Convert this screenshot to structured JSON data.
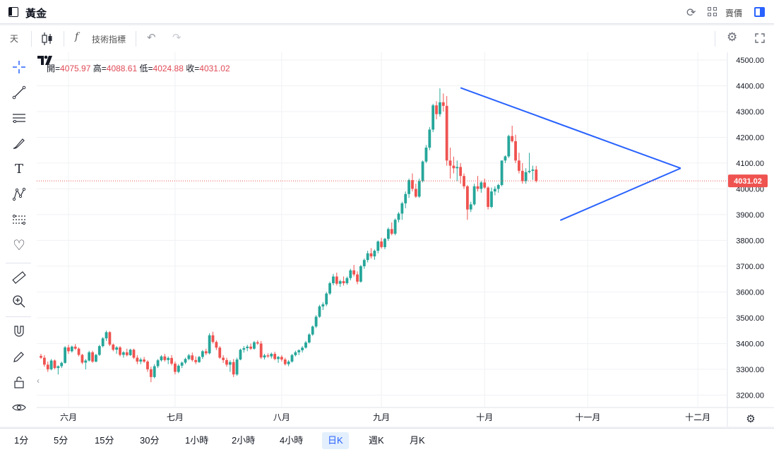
{
  "header": {
    "title": "黃金",
    "quote_label": "賣價"
  },
  "toolbar": {
    "interval_label": "天",
    "indicators_label": "技術指標"
  },
  "legend": {
    "open_label": "開=",
    "open_value": "4075.97",
    "high_label": "高=",
    "high_value": "4088.61",
    "low_label": "低=",
    "low_value": "4024.88",
    "close_label": "收=",
    "close_value": "4031.02"
  },
  "timeframes": [
    "1分",
    "5分",
    "15分",
    "30分",
    "1小時",
    "2小時",
    "4小時",
    "日K",
    "週K",
    "月K"
  ],
  "active_timeframe": "日K",
  "colors": {
    "up": "#26a69a",
    "down": "#ef5350",
    "trendline": "#2962ff",
    "last_price": "#ef5350"
  },
  "chart_data": {
    "type": "candlestick",
    "y_ticks": [
      "3200.00",
      "3300.00",
      "3400.00",
      "3500.00",
      "3600.00",
      "3700.00",
      "3800.00",
      "3900.00",
      "4000.00",
      "4100.00",
      "4200.00",
      "4300.00",
      "4400.00",
      "4500.00"
    ],
    "ylim": [
      3160,
      4530
    ],
    "x_ticks": [
      {
        "label": "六月",
        "index": 8
      },
      {
        "label": "七月",
        "index": 39
      },
      {
        "label": "八月",
        "index": 70
      },
      {
        "label": "九月",
        "index": 99
      },
      {
        "label": "十月",
        "index": 129
      },
      {
        "label": "十一月",
        "index": 159
      },
      {
        "label": "十二月",
        "index": 191
      }
    ],
    "n_slots": 200,
    "last_price": 4031.02,
    "last_price_label": "4031.02",
    "candles": [
      [
        3352,
        3360,
        3340,
        3345
      ],
      [
        3345,
        3355,
        3310,
        3318
      ],
      [
        3318,
        3330,
        3290,
        3300
      ],
      [
        3300,
        3340,
        3296,
        3334
      ],
      [
        3334,
        3338,
        3300,
        3305
      ],
      [
        3305,
        3315,
        3280,
        3312
      ],
      [
        3312,
        3330,
        3305,
        3325
      ],
      [
        3325,
        3390,
        3322,
        3385
      ],
      [
        3385,
        3395,
        3360,
        3370
      ],
      [
        3370,
        3392,
        3365,
        3388
      ],
      [
        3388,
        3398,
        3375,
        3380
      ],
      [
        3380,
        3385,
        3350,
        3356
      ],
      [
        3356,
        3360,
        3320,
        3326
      ],
      [
        3326,
        3340,
        3300,
        3334
      ],
      [
        3334,
        3372,
        3330,
        3366
      ],
      [
        3366,
        3372,
        3325,
        3330
      ],
      [
        3330,
        3360,
        3327,
        3356
      ],
      [
        3356,
        3395,
        3352,
        3390
      ],
      [
        3390,
        3425,
        3385,
        3420
      ],
      [
        3420,
        3450,
        3410,
        3444
      ],
      [
        3444,
        3448,
        3390,
        3396
      ],
      [
        3396,
        3400,
        3370,
        3376
      ],
      [
        3376,
        3390,
        3360,
        3385
      ],
      [
        3385,
        3390,
        3350,
        3356
      ],
      [
        3356,
        3370,
        3345,
        3366
      ],
      [
        3366,
        3380,
        3350,
        3355
      ],
      [
        3355,
        3380,
        3352,
        3376
      ],
      [
        3376,
        3380,
        3340,
        3345
      ],
      [
        3345,
        3355,
        3320,
        3330
      ],
      [
        3330,
        3345,
        3320,
        3338
      ],
      [
        3338,
        3348,
        3325,
        3330
      ],
      [
        3330,
        3335,
        3290,
        3300
      ],
      [
        3300,
        3310,
        3250,
        3270
      ],
      [
        3270,
        3320,
        3265,
        3312
      ],
      [
        3312,
        3340,
        3305,
        3335
      ],
      [
        3335,
        3355,
        3330,
        3350
      ],
      [
        3350,
        3360,
        3330,
        3336
      ],
      [
        3336,
        3350,
        3320,
        3344
      ],
      [
        3344,
        3355,
        3315,
        3322
      ],
      [
        3322,
        3330,
        3280,
        3290
      ],
      [
        3290,
        3320,
        3285,
        3314
      ],
      [
        3314,
        3330,
        3305,
        3326
      ],
      [
        3326,
        3345,
        3320,
        3340
      ],
      [
        3340,
        3360,
        3335,
        3354
      ],
      [
        3354,
        3365,
        3330,
        3336
      ],
      [
        3336,
        3350,
        3320,
        3328
      ],
      [
        3328,
        3352,
        3325,
        3348
      ],
      [
        3348,
        3375,
        3340,
        3370
      ],
      [
        3370,
        3380,
        3355,
        3362
      ],
      [
        3362,
        3440,
        3358,
        3432
      ],
      [
        3432,
        3446,
        3400,
        3406
      ],
      [
        3406,
        3412,
        3375,
        3384
      ],
      [
        3384,
        3390,
        3340,
        3345
      ],
      [
        3345,
        3355,
        3325,
        3336
      ],
      [
        3336,
        3345,
        3310,
        3318
      ],
      [
        3318,
        3335,
        3290,
        3328
      ],
      [
        3328,
        3340,
        3270,
        3280
      ],
      [
        3280,
        3345,
        3275,
        3338
      ],
      [
        3338,
        3380,
        3335,
        3376
      ],
      [
        3376,
        3390,
        3365,
        3382
      ],
      [
        3382,
        3395,
        3370,
        3388
      ],
      [
        3388,
        3400,
        3375,
        3380
      ],
      [
        3380,
        3410,
        3376,
        3405
      ],
      [
        3405,
        3412,
        3395,
        3400
      ],
      [
        3400,
        3410,
        3340,
        3346
      ],
      [
        3346,
        3360,
        3338,
        3354
      ],
      [
        3354,
        3362,
        3345,
        3350
      ],
      [
        3350,
        3365,
        3342,
        3360
      ],
      [
        3360,
        3368,
        3335,
        3340
      ],
      [
        3340,
        3352,
        3325,
        3348
      ],
      [
        3348,
        3355,
        3330,
        3338
      ],
      [
        3338,
        3345,
        3315,
        3320
      ],
      [
        3320,
        3336,
        3312,
        3330
      ],
      [
        3330,
        3360,
        3326,
        3355
      ],
      [
        3355,
        3372,
        3350,
        3366
      ],
      [
        3366,
        3378,
        3355,
        3374
      ],
      [
        3374,
        3390,
        3365,
        3384
      ],
      [
        3384,
        3410,
        3380,
        3404
      ],
      [
        3404,
        3440,
        3400,
        3435
      ],
      [
        3435,
        3470,
        3430,
        3466
      ],
      [
        3466,
        3510,
        3460,
        3504
      ],
      [
        3504,
        3550,
        3500,
        3544
      ],
      [
        3544,
        3560,
        3530,
        3552
      ],
      [
        3552,
        3600,
        3545,
        3594
      ],
      [
        3594,
        3640,
        3588,
        3634
      ],
      [
        3634,
        3670,
        3626,
        3660
      ],
      [
        3660,
        3675,
        3625,
        3632
      ],
      [
        3632,
        3648,
        3620,
        3642
      ],
      [
        3642,
        3660,
        3625,
        3634
      ],
      [
        3634,
        3660,
        3628,
        3654
      ],
      [
        3654,
        3690,
        3645,
        3684
      ],
      [
        3684,
        3705,
        3660,
        3668
      ],
      [
        3668,
        3680,
        3630,
        3640
      ],
      [
        3640,
        3705,
        3636,
        3700
      ],
      [
        3700,
        3730,
        3690,
        3724
      ],
      [
        3724,
        3760,
        3715,
        3750
      ],
      [
        3750,
        3770,
        3730,
        3738
      ],
      [
        3738,
        3765,
        3725,
        3760
      ],
      [
        3760,
        3800,
        3750,
        3796
      ],
      [
        3796,
        3810,
        3768,
        3774
      ],
      [
        3774,
        3810,
        3766,
        3806
      ],
      [
        3806,
        3850,
        3798,
        3844
      ],
      [
        3844,
        3870,
        3820,
        3826
      ],
      [
        3826,
        3885,
        3820,
        3880
      ],
      [
        3880,
        3910,
        3870,
        3904
      ],
      [
        3904,
        3950,
        3880,
        3944
      ],
      [
        3944,
        3990,
        3925,
        3980
      ],
      [
        3980,
        4040,
        3965,
        4034
      ],
      [
        4034,
        4060,
        3990,
        4000
      ],
      [
        4000,
        4020,
        3965,
        3970
      ],
      [
        3970,
        4040,
        3965,
        4030
      ],
      [
        4030,
        4110,
        4025,
        4106
      ],
      [
        4106,
        4170,
        4100,
        4160
      ],
      [
        4160,
        4240,
        4150,
        4230
      ],
      [
        4230,
        4330,
        4220,
        4324
      ],
      [
        4324,
        4340,
        4270,
        4290
      ],
      [
        4290,
        4390,
        4280,
        4336
      ],
      [
        4336,
        4370,
        4300,
        4322
      ],
      [
        4322,
        4360,
        4090,
        4110
      ],
      [
        4110,
        4160,
        4040,
        4090
      ],
      [
        4090,
        4125,
        4060,
        4080
      ],
      [
        4080,
        4110,
        4030,
        4085
      ],
      [
        4085,
        4100,
        4020,
        4050
      ],
      [
        4050,
        4060,
        4000,
        4010
      ],
      [
        4010,
        4015,
        3880,
        3920
      ],
      [
        3920,
        3950,
        3910,
        3940
      ],
      [
        3940,
        4020,
        3935,
        4010
      ],
      [
        4010,
        4050,
        3990,
        4000
      ],
      [
        4000,
        4030,
        3985,
        4025
      ],
      [
        4025,
        4040,
        4000,
        4005
      ],
      [
        4005,
        4010,
        3920,
        3930
      ],
      [
        3930,
        4005,
        3925,
        3990
      ],
      [
        3990,
        4010,
        3975,
        4000
      ],
      [
        4000,
        4020,
        3985,
        4015
      ],
      [
        4015,
        4110,
        4010,
        4110
      ],
      [
        4110,
        4130,
        4100,
        4126
      ],
      [
        4126,
        4210,
        4120,
        4205
      ],
      [
        4205,
        4245,
        4180,
        4185
      ],
      [
        4185,
        4210,
        4100,
        4110
      ],
      [
        4110,
        4140,
        4060,
        4070
      ],
      [
        4070,
        4100,
        4020,
        4030
      ],
      [
        4030,
        4080,
        4020,
        4065
      ],
      [
        4065,
        4140,
        4060,
        4070
      ],
      [
        4070,
        4090,
        4035,
        4075
      ],
      [
        4075,
        4089,
        4025,
        4031
      ]
    ]
  }
}
